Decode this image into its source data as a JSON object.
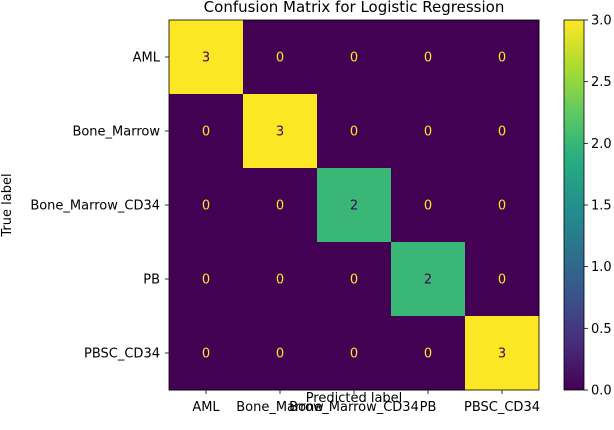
{
  "chart_data": {
    "type": "heatmap",
    "title": "Confusion Matrix for Logistic Regression",
    "xlabel": "Predicted label",
    "ylabel": "True label",
    "x_categories": [
      "AML",
      "Bone_Marrow",
      "Bone_Marrow_CD34",
      "PB",
      "PBSC_CD34"
    ],
    "y_categories": [
      "AML",
      "Bone_Marrow",
      "Bone_Marrow_CD34",
      "PB",
      "PBSC_CD34"
    ],
    "matrix": [
      [
        3,
        0,
        0,
        0,
        0
      ],
      [
        0,
        3,
        0,
        0,
        0
      ],
      [
        0,
        0,
        2,
        0,
        0
      ],
      [
        0,
        0,
        0,
        2,
        0
      ],
      [
        0,
        0,
        0,
        0,
        3
      ]
    ],
    "colormap": "viridis",
    "vmin": 0,
    "vmax": 3,
    "colorbar_ticks": [
      "0.0",
      "0.5",
      "1.0",
      "1.5",
      "2.0",
      "2.5",
      "3.0"
    ],
    "colors": {
      "low": "#440154",
      "mid": "#21918c",
      "high": "#fde725",
      "text_on_dark": "#fde725",
      "text_on_light": "#440154"
    }
  }
}
